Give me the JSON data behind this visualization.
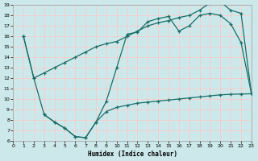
{
  "xlabel": "Humidex (Indice chaleur)",
  "bg_color": "#cce8ea",
  "grid_color_white": "#ffffff",
  "grid_color_red": "#e8aaaa",
  "line_color": "#1a6e68",
  "xlim": [
    0,
    23
  ],
  "ylim": [
    6,
    19
  ],
  "xticks": [
    0,
    1,
    2,
    3,
    4,
    5,
    6,
    7,
    8,
    9,
    10,
    11,
    12,
    13,
    14,
    15,
    16,
    17,
    18,
    19,
    20,
    21,
    22,
    23
  ],
  "yticks": [
    6,
    7,
    8,
    9,
    10,
    11,
    12,
    13,
    14,
    15,
    16,
    17,
    18,
    19
  ],
  "line_upper_x": [
    1,
    2,
    3,
    4,
    5,
    6,
    7,
    8,
    9,
    10,
    11,
    12,
    13,
    14,
    15,
    16,
    17,
    18,
    19,
    20,
    21,
    22,
    23
  ],
  "line_upper_y": [
    16.0,
    12.0,
    12.5,
    13.0,
    13.5,
    14.0,
    14.5,
    15.0,
    15.3,
    15.5,
    16.0,
    16.5,
    17.0,
    17.3,
    17.5,
    17.8,
    18.0,
    18.5,
    19.2,
    19.3,
    18.5,
    18.2,
    10.5
  ],
  "line_main_x": [
    1,
    2,
    3,
    4,
    5,
    6,
    7,
    8,
    9,
    10,
    11,
    12,
    13,
    14,
    15,
    16,
    17,
    18,
    19,
    20,
    21,
    22,
    23
  ],
  "line_main_y": [
    16.0,
    12.0,
    8.5,
    7.8,
    7.2,
    6.4,
    6.3,
    7.8,
    9.8,
    13.0,
    16.2,
    16.4,
    17.4,
    17.7,
    17.9,
    16.5,
    17.0,
    18.0,
    18.2,
    18.0,
    17.2,
    15.4,
    10.5
  ],
  "line_lower_x": [
    3,
    4,
    5,
    6,
    7,
    8,
    9,
    10,
    11,
    12,
    13,
    14,
    15,
    16,
    17,
    18,
    19,
    20,
    21,
    22,
    23
  ],
  "line_lower_y": [
    8.5,
    7.8,
    7.2,
    6.4,
    6.3,
    7.8,
    8.8,
    9.2,
    9.4,
    9.6,
    9.7,
    9.8,
    9.9,
    10.0,
    10.1,
    10.2,
    10.3,
    10.4,
    10.45,
    10.48,
    10.5
  ]
}
